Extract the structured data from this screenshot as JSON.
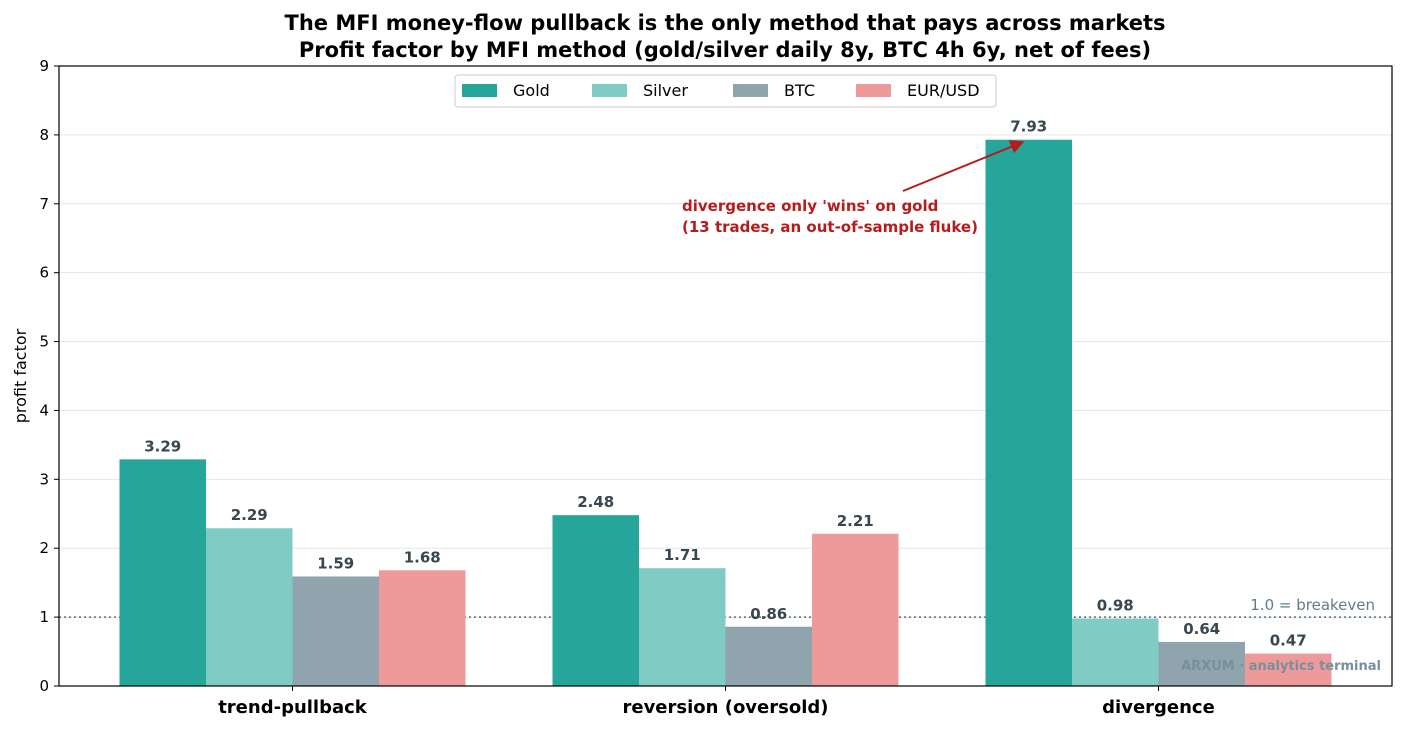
{
  "chart_data": {
    "type": "bar",
    "title": "The MFI money-flow pullback is the only method that pays across markets",
    "subtitle": "Profit factor by MFI method (gold/silver daily 8y, BTC 4h 6y, net of fees)",
    "xlabel": "",
    "ylabel": "profit factor",
    "ylim": [
      0,
      9
    ],
    "yticks": [
      "0",
      "1",
      "2",
      "3",
      "4",
      "5",
      "6",
      "7",
      "8",
      "9"
    ],
    "grid": true,
    "legend_position": "top-center",
    "categories": [
      "trend-pullback",
      "reversion (oversold)",
      "divergence"
    ],
    "series": [
      {
        "name": "Gold",
        "color": "#26a69a",
        "values": [
          3.29,
          2.48,
          7.93
        ],
        "labels": [
          "3.29",
          "2.48",
          "7.93"
        ]
      },
      {
        "name": "Silver",
        "color": "#80cbc4",
        "values": [
          2.29,
          1.71,
          0.98
        ],
        "labels": [
          "2.29",
          "1.71",
          "0.98"
        ]
      },
      {
        "name": "BTC",
        "color": "#90a4ae",
        "values": [
          1.59,
          0.86,
          0.64
        ],
        "labels": [
          "1.59",
          "0.86",
          "0.64"
        ]
      },
      {
        "name": "EUR/USD",
        "color": "#ef9a9a",
        "values": [
          1.68,
          2.21,
          0.47
        ],
        "labels": [
          "1.68",
          "2.21",
          "0.47"
        ]
      }
    ],
    "reference_line": {
      "value": 1.0,
      "label": "1.0 = breakeven",
      "color": "#546e7a"
    },
    "annotation": {
      "lines": [
        "divergence only 'wins' on gold",
        "(13 trades, an out-of-sample fluke)"
      ],
      "target_category": "divergence",
      "target_series": "Gold",
      "color": "#b71c1c"
    },
    "watermark": "ARXUM · analytics terminal"
  }
}
